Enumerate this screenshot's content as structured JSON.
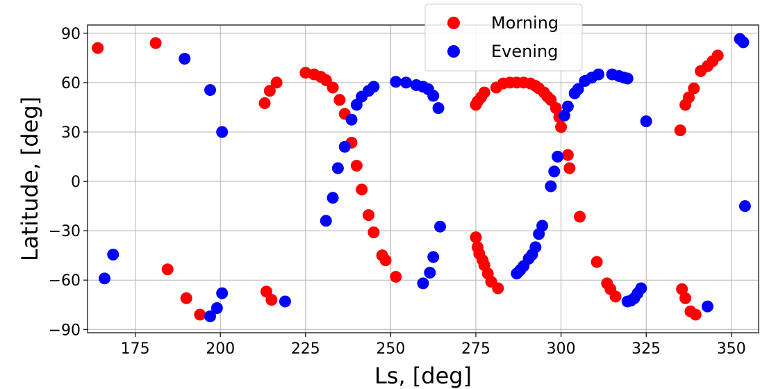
{
  "chart_data": {
    "type": "scatter",
    "title": "",
    "xlabel": "Ls, [deg]",
    "ylabel": "Latitude, [deg]",
    "xlim": [
      161,
      358
    ],
    "ylim": [
      -92,
      95
    ],
    "xticks": [
      175,
      200,
      225,
      250,
      275,
      300,
      325,
      350
    ],
    "yticks": [
      -90,
      -60,
      -30,
      0,
      30,
      60,
      90
    ],
    "xtick_labels": [
      "175",
      "200",
      "225",
      "250",
      "275",
      "300",
      "325",
      "350"
    ],
    "ytick_labels": [
      "−90",
      "−60",
      "−30",
      "0",
      "30",
      "60",
      "90"
    ],
    "grid": true,
    "legend_position": "top-center",
    "series": [
      {
        "name": "Morning",
        "color": "#ff0000",
        "points": [
          [
            164,
            81
          ],
          [
            181,
            84
          ],
          [
            184.5,
            -53.5
          ],
          [
            190,
            -71
          ],
          [
            194,
            -81
          ],
          [
            213,
            47.5
          ],
          [
            214.5,
            55
          ],
          [
            216.5,
            60
          ],
          [
            213.5,
            -67
          ],
          [
            215,
            -72
          ],
          [
            225,
            66
          ],
          [
            227.5,
            65
          ],
          [
            229.5,
            63.5
          ],
          [
            231,
            61.5
          ],
          [
            233,
            57
          ],
          [
            235,
            49.5
          ],
          [
            236.5,
            41
          ],
          [
            238.5,
            23.5
          ],
          [
            240,
            9.5
          ],
          [
            241.5,
            -5
          ],
          [
            243.5,
            -20.5
          ],
          [
            245,
            -31
          ],
          [
            247.5,
            -45
          ],
          [
            248.5,
            -48
          ],
          [
            251.5,
            -58
          ],
          [
            275,
            -34
          ],
          [
            275.5,
            -40
          ],
          [
            276,
            -44
          ],
          [
            277,
            -48
          ],
          [
            277.5,
            -51
          ],
          [
            278.5,
            -56
          ],
          [
            279.5,
            -61
          ],
          [
            281.5,
            -65
          ],
          [
            275,
            46.5
          ],
          [
            275.5,
            48.5
          ],
          [
            276.5,
            51
          ],
          [
            277.5,
            54
          ],
          [
            281,
            57
          ],
          [
            283,
            59.5
          ],
          [
            285,
            60
          ],
          [
            287,
            60
          ],
          [
            289,
            60
          ],
          [
            291,
            59.5
          ],
          [
            292.5,
            58
          ],
          [
            293.5,
            56.5
          ],
          [
            295,
            54
          ],
          [
            296,
            51.5
          ],
          [
            297,
            49.5
          ],
          [
            298.5,
            44.5
          ],
          [
            299.5,
            39
          ],
          [
            300,
            33
          ],
          [
            302,
            16
          ],
          [
            302.5,
            8
          ],
          [
            305.5,
            -21.5
          ],
          [
            310.5,
            -49
          ],
          [
            313.5,
            -62
          ],
          [
            314.5,
            -65.5
          ],
          [
            316,
            -70
          ],
          [
            335,
            31
          ],
          [
            336.5,
            46.5
          ],
          [
            337.5,
            51
          ],
          [
            339,
            56.5
          ],
          [
            341,
            67
          ],
          [
            343,
            70
          ],
          [
            344.5,
            73
          ],
          [
            346,
            76.5
          ],
          [
            335.5,
            -65.5
          ],
          [
            336.5,
            -71
          ],
          [
            338,
            -79
          ],
          [
            339.5,
            -81
          ]
        ]
      },
      {
        "name": "Evening",
        "color": "#0000ff",
        "points": [
          [
            166,
            -59
          ],
          [
            168.5,
            -44.5
          ],
          [
            189.5,
            74.5
          ],
          [
            197,
            55.5
          ],
          [
            200.5,
            30
          ],
          [
            197,
            -82
          ],
          [
            199,
            -77
          ],
          [
            200.5,
            -68
          ],
          [
            219,
            -73
          ],
          [
            231,
            -24
          ],
          [
            233,
            -10
          ],
          [
            234.5,
            8
          ],
          [
            236.5,
            21
          ],
          [
            238.5,
            37.5
          ],
          [
            240,
            46.5
          ],
          [
            241.5,
            51.5
          ],
          [
            243.5,
            55
          ],
          [
            245,
            57.5
          ],
          [
            251.5,
            60.5
          ],
          [
            254.5,
            60
          ],
          [
            257.5,
            58.5
          ],
          [
            259.5,
            57.5
          ],
          [
            261,
            56
          ],
          [
            262.5,
            52
          ],
          [
            264,
            44.5
          ],
          [
            259.5,
            -62
          ],
          [
            261.5,
            -55.5
          ],
          [
            262.5,
            -46
          ],
          [
            264.5,
            -27.5
          ],
          [
            287,
            -56
          ],
          [
            288,
            -54
          ],
          [
            289,
            -51.5
          ],
          [
            290.5,
            -47
          ],
          [
            291.5,
            -44.5
          ],
          [
            292.5,
            -40
          ],
          [
            293.5,
            -32
          ],
          [
            294.5,
            -27
          ],
          [
            297,
            -3
          ],
          [
            298,
            6
          ],
          [
            299,
            15
          ],
          [
            301,
            40
          ],
          [
            302,
            45.5
          ],
          [
            304,
            53.5
          ],
          [
            305,
            56
          ],
          [
            307,
            61
          ],
          [
            309,
            63
          ],
          [
            311,
            65
          ],
          [
            315,
            65
          ],
          [
            317,
            64
          ],
          [
            318.5,
            63
          ],
          [
            319.5,
            62.5
          ],
          [
            319.5,
            -73
          ],
          [
            320.5,
            -72.5
          ],
          [
            321.5,
            -71
          ],
          [
            322.5,
            -68
          ],
          [
            323.5,
            -65
          ],
          [
            325,
            36.5
          ],
          [
            343,
            -76
          ],
          [
            352.5,
            86.5
          ],
          [
            353.5,
            84.5
          ],
          [
            354,
            -15
          ]
        ]
      }
    ]
  }
}
